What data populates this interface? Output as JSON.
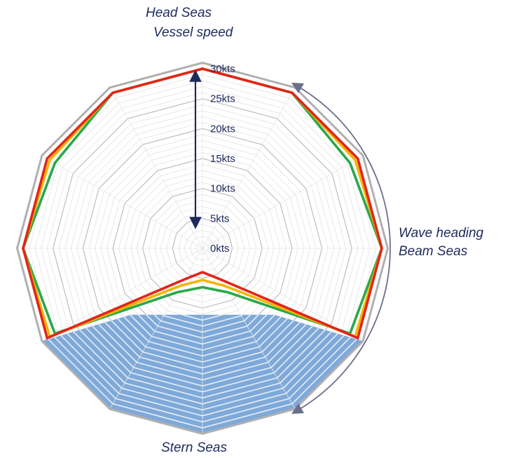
{
  "labels": {
    "head_seas": "Head Seas",
    "vessel_speed": "Vessel speed",
    "wave_heading": "Wave heading",
    "beam_seas": "Beam Seas",
    "stern_seas": "Stern Seas"
  },
  "chart_data": {
    "type": "radar",
    "axis_count": 12,
    "radial_axis": {
      "min": 0,
      "max": 30,
      "unit": "kts",
      "tick_labels": [
        "0kts",
        "5kts",
        "10kts",
        "15kts",
        "20kts",
        "25kts",
        "30kts"
      ],
      "tick_values": [
        0,
        5,
        10,
        15,
        20,
        25,
        30
      ],
      "minor_ring_step": 1
    },
    "outer_limit": {
      "color": "#b0b0b0",
      "values": [
        31,
        31,
        31,
        31,
        31,
        31,
        31,
        31,
        31,
        31,
        31,
        31
      ]
    },
    "shaded_region": {
      "color": "#7fa9d8",
      "ring_color": "#e6eef8",
      "description_axes": "stern sector between 120 and 240 degrees"
    },
    "series": [
      {
        "color": "#2aa84a",
        "values": [
          30,
          30,
          28.5,
          30,
          28.5,
          8.5,
          6.5,
          8.5,
          28.5,
          30,
          28.5,
          30
        ]
      },
      {
        "color": "#f4b400",
        "values": [
          30,
          30,
          29.5,
          30,
          29.5,
          7.2,
          5.3,
          7.2,
          29.5,
          30,
          29.5,
          30
        ]
      },
      {
        "color": "#e0261b",
        "values": [
          30,
          30,
          30,
          30,
          30,
          6.0,
          4.0,
          6.0,
          30,
          30,
          30,
          30
        ]
      }
    ],
    "speed_arrow": {
      "from": 0,
      "to": 30,
      "color": "#1f2a5c"
    },
    "wave_heading_arrow": {
      "from_deg": 30,
      "to_deg": 150,
      "color": "#6a6f8a"
    }
  }
}
